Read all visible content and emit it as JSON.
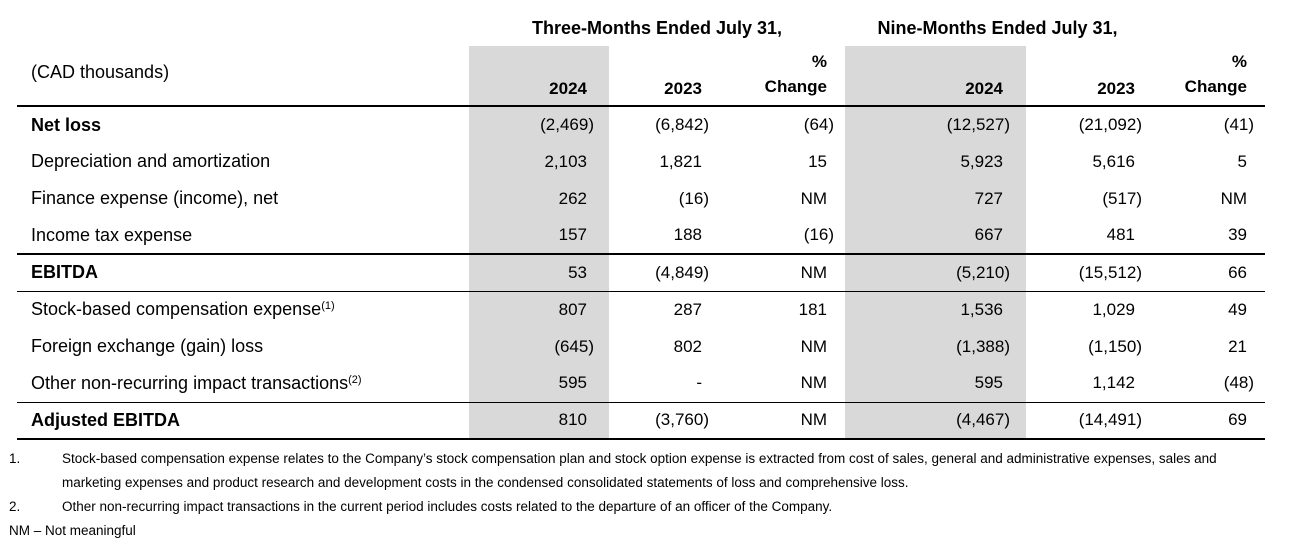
{
  "colors": {
    "band": "#d9d9d9",
    "ink": "#000000"
  },
  "table": {
    "unit_label": "(CAD thousands)",
    "period_titles": {
      "three_month": "Three-Months Ended July 31,",
      "nine_month": "Nine-Months Ended July 31,"
    },
    "headers": {
      "year_current": "2024",
      "year_prior": "2023",
      "pct_line1": "%",
      "pct_line2": "Change"
    },
    "rows": [
      {
        "label": "Net loss",
        "sup": "",
        "bold": true,
        "rule": "",
        "values": [
          "(2,469)",
          "(6,842)",
          "(64)",
          "(12,527)",
          "(21,092)",
          "(41)"
        ]
      },
      {
        "label": "Depreciation and amortization",
        "sup": "",
        "bold": false,
        "rule": "",
        "values": [
          "2,103",
          "1,821",
          "15",
          "5,923",
          "5,616",
          "5"
        ]
      },
      {
        "label": "Finance expense (income), net",
        "sup": "",
        "bold": false,
        "rule": "",
        "values": [
          "262",
          "(16)",
          "NM",
          "727",
          "(517)",
          "NM"
        ]
      },
      {
        "label": "Income tax expense",
        "sup": "",
        "bold": false,
        "rule": "thick",
        "values": [
          "157",
          "188",
          "(16)",
          "667",
          "481",
          "39"
        ]
      },
      {
        "label": "EBITDA",
        "sup": "",
        "bold": true,
        "rule": "thin",
        "values": [
          "53",
          "(4,849)",
          "NM",
          "(5,210)",
          "(15,512)",
          "66"
        ]
      },
      {
        "label": "Stock-based compensation expense",
        "sup": "(1)",
        "bold": false,
        "rule": "",
        "values": [
          "807",
          "287",
          "181",
          "1,536",
          "1,029",
          "49"
        ]
      },
      {
        "label": "Foreign exchange (gain) loss",
        "sup": "",
        "bold": false,
        "rule": "",
        "values": [
          "(645)",
          "802",
          "NM",
          "(1,388)",
          "(1,150)",
          "21"
        ]
      },
      {
        "label": "Other non-recurring impact transactions",
        "sup": "(2)",
        "bold": false,
        "rule": "thin",
        "values": [
          "595",
          "-",
          "NM",
          "595",
          "1,142",
          "(48)"
        ]
      },
      {
        "label": "Adjusted EBITDA",
        "sup": "",
        "bold": true,
        "rule": "thick",
        "values": [
          "810",
          "(3,760)",
          "NM",
          "(4,467)",
          "(14,491)",
          "69"
        ]
      }
    ]
  },
  "footnotes": {
    "items": [
      {
        "number": "1.",
        "text": "Stock-based compensation expense relates to the Company’s stock compensation plan and stock option expense is extracted from cost of sales, general and administrative expenses, sales and marketing expenses and product research and development costs in the condensed consolidated statements of loss and comprehensive loss."
      },
      {
        "number": "2.",
        "text": "Other non-recurring impact transactions in the current period includes costs related to the departure of an officer of the Company."
      }
    ],
    "nm_note": "NM – Not meaningful"
  }
}
